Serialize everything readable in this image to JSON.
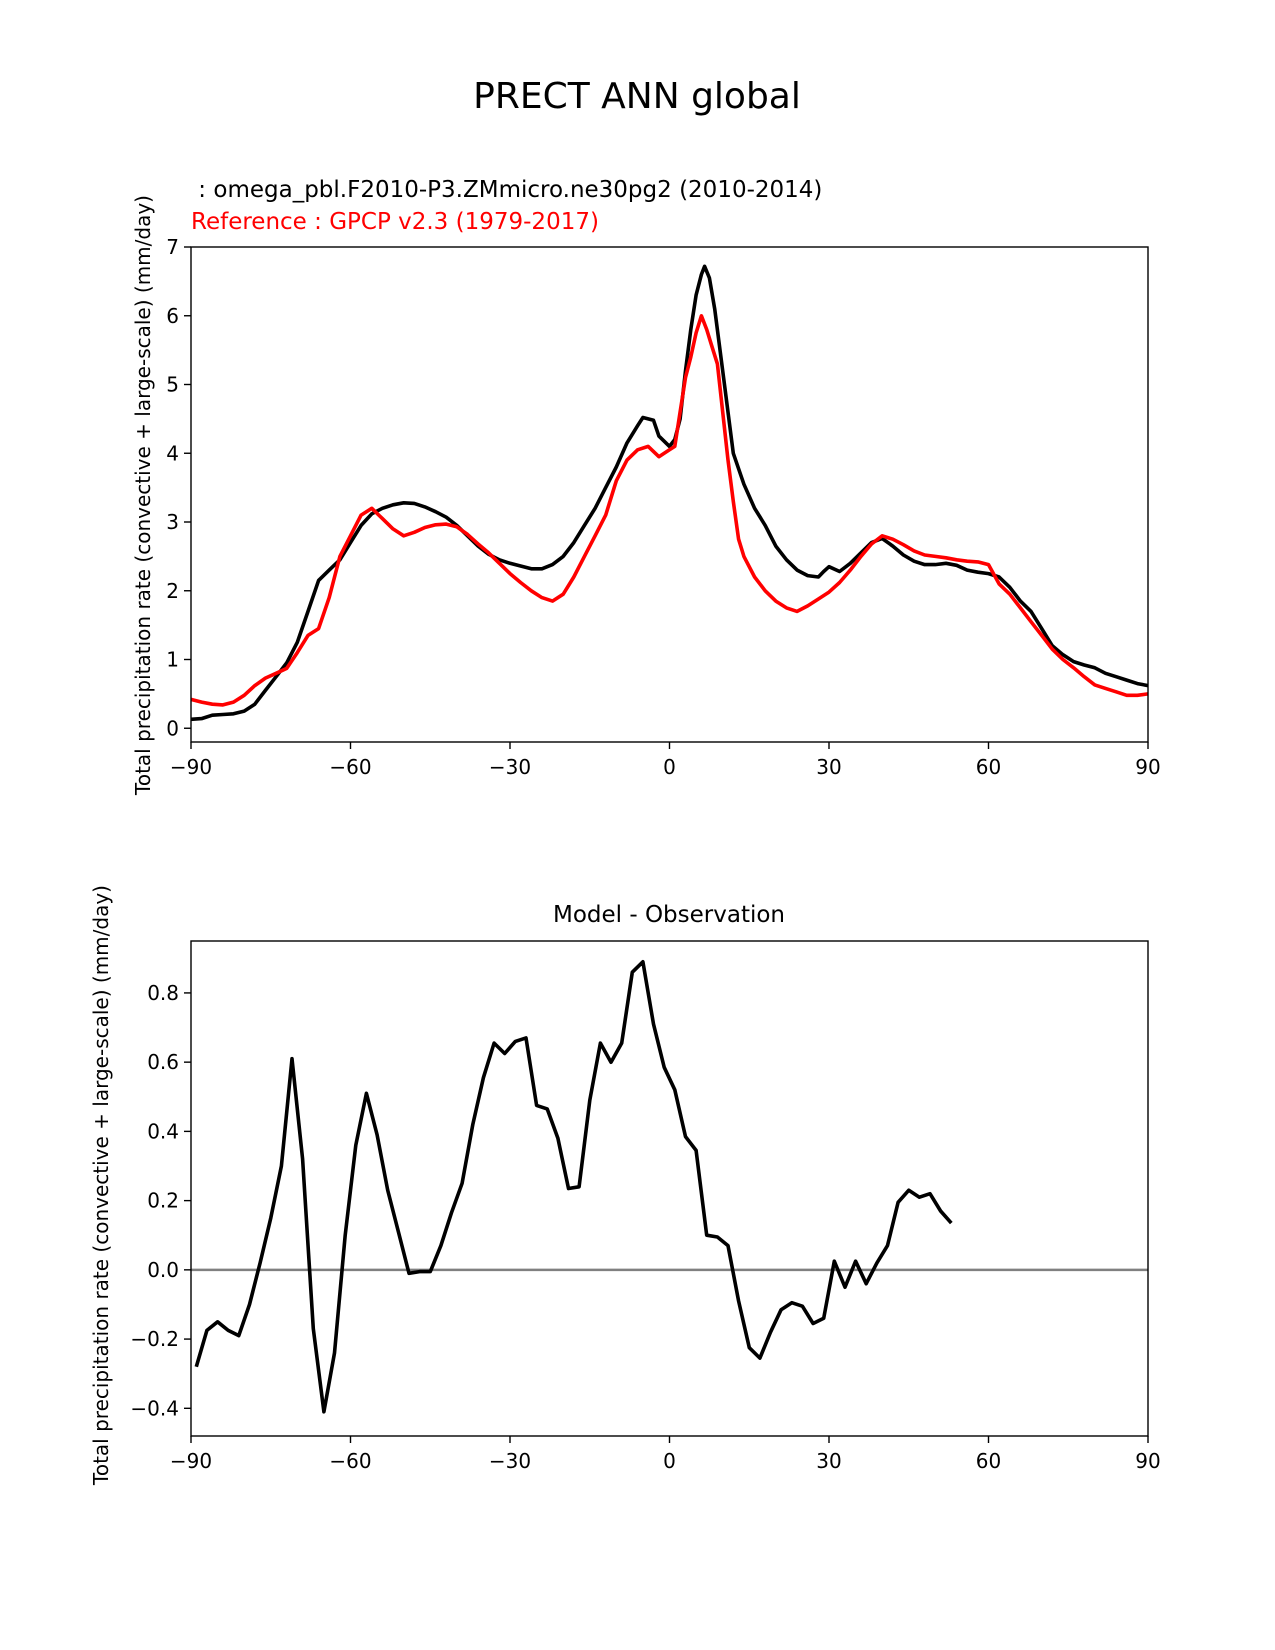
{
  "figure": {
    "suptitle": "PRECT ANN global",
    "zero_line_color": "#808080"
  },
  "chart_data": [
    {
      "type": "line",
      "test_label": " : omega_pbl.F2010-P3.ZMmicro.ne30pg2 (2010-2014)",
      "ref_label": "Reference : GPCP v2.3 (1979-2017)",
      "ylabel": "Total precipitation rate (convective + large-scale) (mm/day)",
      "xlabel": "",
      "xlim": [
        -90,
        90
      ],
      "ylim": [
        -0.2,
        7
      ],
      "xticks": [
        -90,
        -60,
        -30,
        0,
        30,
        60,
        90
      ],
      "xtick_labels": [
        "−90",
        "−60",
        "−30",
        "0",
        "30",
        "60",
        "90"
      ],
      "yticks": [
        0,
        1,
        2,
        3,
        4,
        5,
        6,
        7
      ],
      "ytick_labels": [
        "0",
        "1",
        "2",
        "3",
        "4",
        "5",
        "6",
        "7"
      ],
      "series": [
        {
          "name": "test",
          "color": "#000000",
          "points": [
            [
              -90,
              0.13
            ],
            [
              -88,
              0.14
            ],
            [
              -86,
              0.19
            ],
            [
              -84,
              0.2
            ],
            [
              -82,
              0.21
            ],
            [
              -80,
              0.25
            ],
            [
              -78,
              0.35
            ],
            [
              -76,
              0.55
            ],
            [
              -74,
              0.75
            ],
            [
              -72,
              0.95
            ],
            [
              -70,
              1.25
            ],
            [
              -68,
              1.7
            ],
            [
              -66,
              2.15
            ],
            [
              -64,
              2.3
            ],
            [
              -62,
              2.45
            ],
            [
              -60,
              2.7
            ],
            [
              -58,
              2.95
            ],
            [
              -56,
              3.12
            ],
            [
              -54,
              3.2
            ],
            [
              -52,
              3.25
            ],
            [
              -50,
              3.28
            ],
            [
              -48,
              3.27
            ],
            [
              -46,
              3.22
            ],
            [
              -44,
              3.15
            ],
            [
              -42,
              3.07
            ],
            [
              -40,
              2.95
            ],
            [
              -38,
              2.8
            ],
            [
              -36,
              2.65
            ],
            [
              -34,
              2.53
            ],
            [
              -32,
              2.45
            ],
            [
              -30,
              2.4
            ],
            [
              -28,
              2.36
            ],
            [
              -26,
              2.32
            ],
            [
              -24,
              2.32
            ],
            [
              -22,
              2.38
            ],
            [
              -20,
              2.5
            ],
            [
              -18,
              2.7
            ],
            [
              -16,
              2.95
            ],
            [
              -14,
              3.2
            ],
            [
              -12,
              3.5
            ],
            [
              -10,
              3.8
            ],
            [
              -8,
              4.15
            ],
            [
              -6,
              4.4
            ],
            [
              -5,
              4.52
            ],
            [
              -3,
              4.48
            ],
            [
              -2,
              4.25
            ],
            [
              0,
              4.1
            ],
            [
              1,
              4.2
            ],
            [
              2,
              4.5
            ],
            [
              3,
              5.2
            ],
            [
              4,
              5.8
            ],
            [
              5,
              6.3
            ],
            [
              6,
              6.6
            ],
            [
              6.6,
              6.72
            ],
            [
              7.5,
              6.55
            ],
            [
              8.5,
              6.1
            ],
            [
              10,
              5.2
            ],
            [
              12,
              4
            ],
            [
              14,
              3.55
            ],
            [
              16,
              3.2
            ],
            [
              18,
              2.95
            ],
            [
              20,
              2.65
            ],
            [
              22,
              2.45
            ],
            [
              24,
              2.3
            ],
            [
              26,
              2.22
            ],
            [
              28,
              2.2
            ],
            [
              29,
              2.28
            ],
            [
              30,
              2.35
            ],
            [
              32,
              2.28
            ],
            [
              34,
              2.4
            ],
            [
              36,
              2.55
            ],
            [
              38,
              2.7
            ],
            [
              40,
              2.76
            ],
            [
              42,
              2.65
            ],
            [
              44,
              2.52
            ],
            [
              46,
              2.43
            ],
            [
              48,
              2.38
            ],
            [
              50,
              2.38
            ],
            [
              52,
              2.4
            ],
            [
              54,
              2.37
            ],
            [
              56,
              2.3
            ],
            [
              58,
              2.27
            ],
            [
              60,
              2.25
            ],
            [
              62,
              2.2
            ],
            [
              64,
              2.05
            ],
            [
              66,
              1.85
            ],
            [
              68,
              1.7
            ],
            [
              70,
              1.45
            ],
            [
              72,
              1.2
            ],
            [
              74,
              1.07
            ],
            [
              76,
              0.97
            ],
            [
              78,
              0.92
            ],
            [
              80,
              0.88
            ],
            [
              82,
              0.8
            ],
            [
              84,
              0.75
            ],
            [
              86,
              0.7
            ],
            [
              88,
              0.65
            ],
            [
              90,
              0.62
            ]
          ]
        },
        {
          "name": "reference",
          "color": "#ff0000",
          "points": [
            [
              -90,
              0.42
            ],
            [
              -88,
              0.38
            ],
            [
              -86,
              0.35
            ],
            [
              -84,
              0.34
            ],
            [
              -82,
              0.38
            ],
            [
              -80,
              0.48
            ],
            [
              -78,
              0.62
            ],
            [
              -76,
              0.73
            ],
            [
              -74,
              0.8
            ],
            [
              -72,
              0.87
            ],
            [
              -70,
              1.1
            ],
            [
              -68,
              1.35
            ],
            [
              -66,
              1.45
            ],
            [
              -64,
              1.9
            ],
            [
              -62,
              2.5
            ],
            [
              -60,
              2.8
            ],
            [
              -58,
              3.1
            ],
            [
              -56,
              3.2
            ],
            [
              -54,
              3.05
            ],
            [
              -52,
              2.9
            ],
            [
              -50,
              2.8
            ],
            [
              -48,
              2.85
            ],
            [
              -46,
              2.92
            ],
            [
              -44,
              2.96
            ],
            [
              -42,
              2.97
            ],
            [
              -40,
              2.93
            ],
            [
              -38,
              2.82
            ],
            [
              -36,
              2.68
            ],
            [
              -34,
              2.55
            ],
            [
              -32,
              2.4
            ],
            [
              -30,
              2.25
            ],
            [
              -28,
              2.12
            ],
            [
              -26,
              2
            ],
            [
              -24,
              1.9
            ],
            [
              -22,
              1.85
            ],
            [
              -20,
              1.95
            ],
            [
              -18,
              2.2
            ],
            [
              -16,
              2.5
            ],
            [
              -14,
              2.8
            ],
            [
              -12,
              3.1
            ],
            [
              -10,
              3.6
            ],
            [
              -8,
              3.9
            ],
            [
              -6,
              4.05
            ],
            [
              -4,
              4.1
            ],
            [
              -2,
              3.95
            ],
            [
              0,
              4.05
            ],
            [
              1,
              4.1
            ],
            [
              2,
              4.6
            ],
            [
              3,
              5.1
            ],
            [
              4,
              5.4
            ],
            [
              5,
              5.75
            ],
            [
              6,
              6
            ],
            [
              7,
              5.8
            ],
            [
              8,
              5.55
            ],
            [
              9,
              5.3
            ],
            [
              10,
              4.6
            ],
            [
              11,
              3.9
            ],
            [
              12,
              3.3
            ],
            [
              13,
              2.75
            ],
            [
              14,
              2.5
            ],
            [
              16,
              2.2
            ],
            [
              18,
              2
            ],
            [
              20,
              1.85
            ],
            [
              22,
              1.75
            ],
            [
              24,
              1.7
            ],
            [
              26,
              1.78
            ],
            [
              28,
              1.88
            ],
            [
              30,
              1.98
            ],
            [
              32,
              2.12
            ],
            [
              34,
              2.3
            ],
            [
              36,
              2.5
            ],
            [
              38,
              2.68
            ],
            [
              40,
              2.8
            ],
            [
              42,
              2.75
            ],
            [
              44,
              2.67
            ],
            [
              46,
              2.58
            ],
            [
              48,
              2.52
            ],
            [
              50,
              2.5
            ],
            [
              52,
              2.48
            ],
            [
              54,
              2.45
            ],
            [
              56,
              2.43
            ],
            [
              58,
              2.42
            ],
            [
              60,
              2.38
            ],
            [
              62,
              2.1
            ],
            [
              64,
              1.95
            ],
            [
              66,
              1.75
            ],
            [
              68,
              1.55
            ],
            [
              70,
              1.35
            ],
            [
              72,
              1.15
            ],
            [
              74,
              1
            ],
            [
              76,
              0.88
            ],
            [
              78,
              0.75
            ],
            [
              80,
              0.63
            ],
            [
              82,
              0.58
            ],
            [
              84,
              0.53
            ],
            [
              86,
              0.48
            ],
            [
              88,
              0.48
            ],
            [
              90,
              0.5
            ]
          ]
        }
      ]
    },
    {
      "type": "line",
      "title": "Model - Observation",
      "ylabel": "Total precipitation rate (convective + large-scale) (mm/day)",
      "xlabel": "",
      "xlim": [
        -90,
        90
      ],
      "ylim": [
        -0.48,
        0.95
      ],
      "xticks": [
        -90,
        -60,
        -30,
        0,
        30,
        60,
        90
      ],
      "xtick_labels": [
        "−90",
        "−60",
        "−30",
        "0",
        "30",
        "60",
        "90"
      ],
      "yticks": [
        -0.4,
        -0.2,
        0,
        0.2,
        0.4,
        0.6,
        0.8
      ],
      "ytick_labels": [
        "−0.4",
        "−0.2",
        "0.0",
        "0.2",
        "0.4",
        "0.6",
        "0.8"
      ],
      "zero_line": 0,
      "series": [
        {
          "name": "difference",
          "color": "#000000",
          "points": [
            [
              -89,
              -0.28
            ],
            [
              -87,
              -0.175
            ],
            [
              -85,
              -0.15
            ],
            [
              -83,
              -0.175
            ],
            [
              -81,
              -0.19
            ],
            [
              -79,
              -0.1
            ],
            [
              -77,
              0.02
            ],
            [
              -75,
              0.15
            ],
            [
              -73,
              0.3
            ],
            [
              -71,
              0.61
            ],
            [
              -69,
              0.32
            ],
            [
              -67,
              -0.17
            ],
            [
              -65,
              -0.41
            ],
            [
              -63,
              -0.24
            ],
            [
              -61,
              0.1
            ],
            [
              -59,
              0.36
            ],
            [
              -57,
              0.51
            ],
            [
              -55,
              0.39
            ],
            [
              -53,
              0.23
            ],
            [
              -51,
              0.11
            ],
            [
              -49,
              -0.01
            ],
            [
              -47,
              -0.005
            ],
            [
              -45,
              -0.005
            ],
            [
              -43,
              0.07
            ],
            [
              -41,
              0.165
            ],
            [
              -39,
              0.25
            ],
            [
              -37,
              0.42
            ],
            [
              -35,
              0.555
            ],
            [
              -33,
              0.655
            ],
            [
              -31,
              0.625
            ],
            [
              -29,
              0.66
            ],
            [
              -27,
              0.67
            ],
            [
              -25,
              0.475
            ],
            [
              -23,
              0.465
            ],
            [
              -21,
              0.38
            ],
            [
              -19,
              0.235
            ],
            [
              -17,
              0.24
            ],
            [
              -15,
              0.49
            ],
            [
              -13,
              0.655
            ],
            [
              -11,
              0.6
            ],
            [
              -9,
              0.655
            ],
            [
              -7,
              0.86
            ],
            [
              -5,
              0.89
            ],
            [
              -3,
              0.71
            ],
            [
              -1,
              0.585
            ],
            [
              1,
              0.52
            ],
            [
              3,
              0.385
            ],
            [
              5,
              0.345
            ],
            [
              7,
              0.1
            ],
            [
              9,
              0.095
            ],
            [
              11,
              0.07
            ],
            [
              13,
              -0.09
            ],
            [
              15,
              -0.225
            ],
            [
              17,
              -0.255
            ],
            [
              19,
              -0.18
            ],
            [
              21,
              -0.115
            ],
            [
              23,
              -0.095
            ],
            [
              25,
              -0.105
            ],
            [
              27,
              -0.155
            ],
            [
              29,
              -0.14
            ],
            [
              31,
              0.025
            ],
            [
              33,
              -0.05
            ],
            [
              35,
              0.025
            ],
            [
              37,
              -0.04
            ],
            [
              39,
              0.02
            ],
            [
              41,
              0.07
            ],
            [
              43,
              0.195
            ],
            [
              45,
              0.23
            ],
            [
              47,
              0.21
            ],
            [
              49,
              0.22
            ],
            [
              51,
              0.17
            ],
            [
              53,
              0.135
            ]
          ]
        }
      ]
    }
  ]
}
